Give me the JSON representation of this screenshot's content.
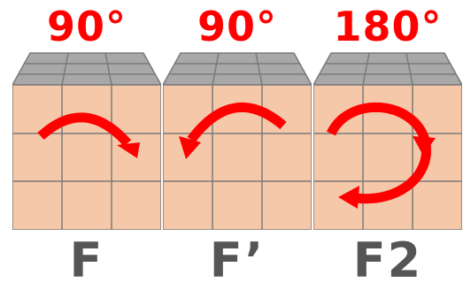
{
  "panels": [
    {
      "angle": "90°",
      "notation": "F",
      "turn": "clockwise-quarter"
    },
    {
      "angle": "90°",
      "notation": "F’",
      "turn": "counterclockwise-quarter"
    },
    {
      "angle": "180°",
      "notation": "F2",
      "turn": "half-turn"
    }
  ],
  "colors": {
    "front_face": "#f6c8aa",
    "top_face": "#a8a8a8",
    "grid_line": "#7a7a7a",
    "arrow": "#ff0000",
    "angle_text": "#ff0000",
    "notation_text": "#555555"
  }
}
